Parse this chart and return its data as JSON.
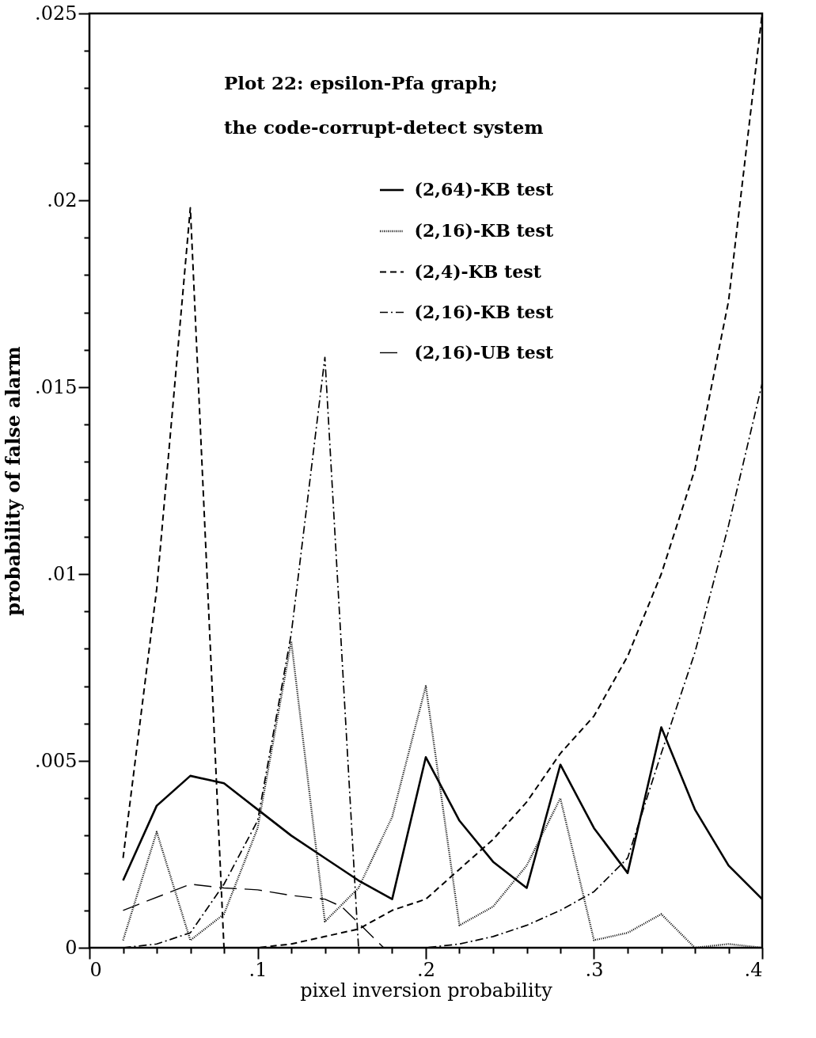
{
  "chart_data": {
    "type": "line",
    "title": "Plot 22: epsilon-Pfa graph;",
    "subtitle": "the code-corrupt-detect system",
    "xlabel": "pixel inversion probability",
    "ylabel": "probability of false alarm",
    "x": [
      0.02,
      0.04,
      0.06,
      0.08,
      0.1,
      0.12,
      0.14,
      0.16,
      0.18,
      0.2,
      0.22,
      0.24,
      0.26,
      0.28,
      0.3,
      0.32,
      0.34,
      0.36,
      0.38,
      0.4
    ],
    "series": [
      {
        "name": "(2,64)-KB test",
        "color": "#000000",
        "line_style": "solid",
        "values": [
          0.0018,
          0.0038,
          0.0046,
          0.0044,
          0.0037,
          0.003,
          0.0024,
          0.0018,
          0.0013,
          0.0051,
          0.0034,
          0.0023,
          0.0016,
          0.0049,
          0.0032,
          0.002,
          0.0059,
          0.0037,
          0.0022,
          0.0013
        ]
      },
      {
        "name": "(2,16)-KB test",
        "color": "#000000",
        "line_style": "dotted",
        "values": [
          0.0002,
          0.0031,
          0.0002,
          0.0009,
          0.0032,
          0.0082,
          0.0007,
          0.0016,
          0.0035,
          0.007,
          0.0006,
          0.0011,
          0.0022,
          0.004,
          0.0002,
          0.0004,
          0.0009,
          0.0,
          0.0001,
          0.0
        ]
      },
      {
        "name": "(2,4)-KB test",
        "color": "#000000",
        "line_style": "dashed",
        "values": [
          0.0024,
          0.0096,
          0.0198,
          0.0,
          0.0,
          0.0001,
          0.0003,
          0.0005,
          0.001,
          0.0013,
          0.0021,
          0.0029,
          0.0039,
          0.0052,
          0.0062,
          0.0078,
          0.01,
          0.0128,
          0.0173,
          0.025
        ]
      },
      {
        "name": "(2,16)-KB test",
        "color": "#000000",
        "line_style": "dashdot",
        "values": [
          0.0,
          0.0001,
          0.0004,
          0.0017,
          0.0034,
          0.0084,
          0.0158,
          0.0,
          0.0,
          0.0,
          0.0001,
          0.0003,
          0.0006,
          0.001,
          0.0015,
          0.0024,
          0.0052,
          0.0079,
          0.0113,
          0.0151
        ]
      },
      {
        "name": "(2,16)-UB test",
        "color": "#000000",
        "line_style": "longdash",
        "x": [
          0.02,
          0.06,
          0.08,
          0.1,
          0.12,
          0.14,
          0.15,
          0.175
        ],
        "values": [
          0.001,
          0.0017,
          0.0016,
          0.00155,
          0.0014,
          0.0013,
          0.0011,
          0.0
        ]
      }
    ],
    "xlim": [
      0,
      0.4
    ],
    "ylim": [
      0,
      0.025
    ],
    "xticks": [
      0,
      {
        "value": 0.02,
        "label": null
      },
      {
        "value": 0.04,
        "label": null
      },
      {
        "value": 0.06,
        "label": null
      },
      {
        "value": 0.08,
        "label": null
      },
      {
        "value": 0.1,
        "label": ".1"
      },
      {
        "value": 0.12,
        "label": null
      },
      {
        "value": 0.14,
        "label": null
      },
      {
        "value": 0.16,
        "label": null
      },
      {
        "value": 0.18,
        "label": null
      },
      {
        "value": 0.2,
        "label": ".2"
      },
      {
        "value": 0.22,
        "label": null
      },
      {
        "value": 0.24,
        "label": null
      },
      {
        "value": 0.26,
        "label": null
      },
      {
        "value": 0.28,
        "label": null
      },
      {
        "value": 0.3,
        "label": ".3"
      },
      {
        "value": 0.32,
        "label": null
      },
      {
        "value": 0.34,
        "label": null
      },
      {
        "value": 0.36,
        "label": null
      },
      {
        "value": 0.38,
        "label": null
      },
      {
        "value": 0.4,
        "label": ".4"
      }
    ],
    "yticks": [
      0,
      {
        "value": 0.001,
        "label": null
      },
      {
        "value": 0.002,
        "label": null
      },
      {
        "value": 0.003,
        "label": null
      },
      {
        "value": 0.004,
        "label": null
      },
      {
        "value": 0.005,
        "label": ".005"
      },
      {
        "value": 0.006,
        "label": null
      },
      {
        "value": 0.007,
        "label": null
      },
      {
        "value": 0.008,
        "label": null
      },
      {
        "value": 0.009,
        "label": null
      },
      {
        "value": 0.01,
        "label": ".01"
      },
      {
        "value": 0.011,
        "label": null
      },
      {
        "value": 0.012,
        "label": null
      },
      {
        "value": 0.013,
        "label": null
      },
      {
        "value": 0.014,
        "label": null
      },
      {
        "value": 0.015,
        "label": ".015"
      },
      {
        "value": 0.016,
        "label": null
      },
      {
        "value": 0.017,
        "label": null
      },
      {
        "value": 0.018,
        "label": null
      },
      {
        "value": 0.019,
        "label": null
      },
      {
        "value": 0.02,
        "label": ".02"
      },
      {
        "value": 0.021,
        "label": null
      },
      {
        "value": 0.022,
        "label": null
      },
      {
        "value": 0.023,
        "label": null
      },
      {
        "value": 0.024,
        "label": null
      },
      {
        "value": 0.025,
        "label": ".025"
      }
    ],
    "grid": false,
    "legend": "top right",
    "marker": "none"
  }
}
